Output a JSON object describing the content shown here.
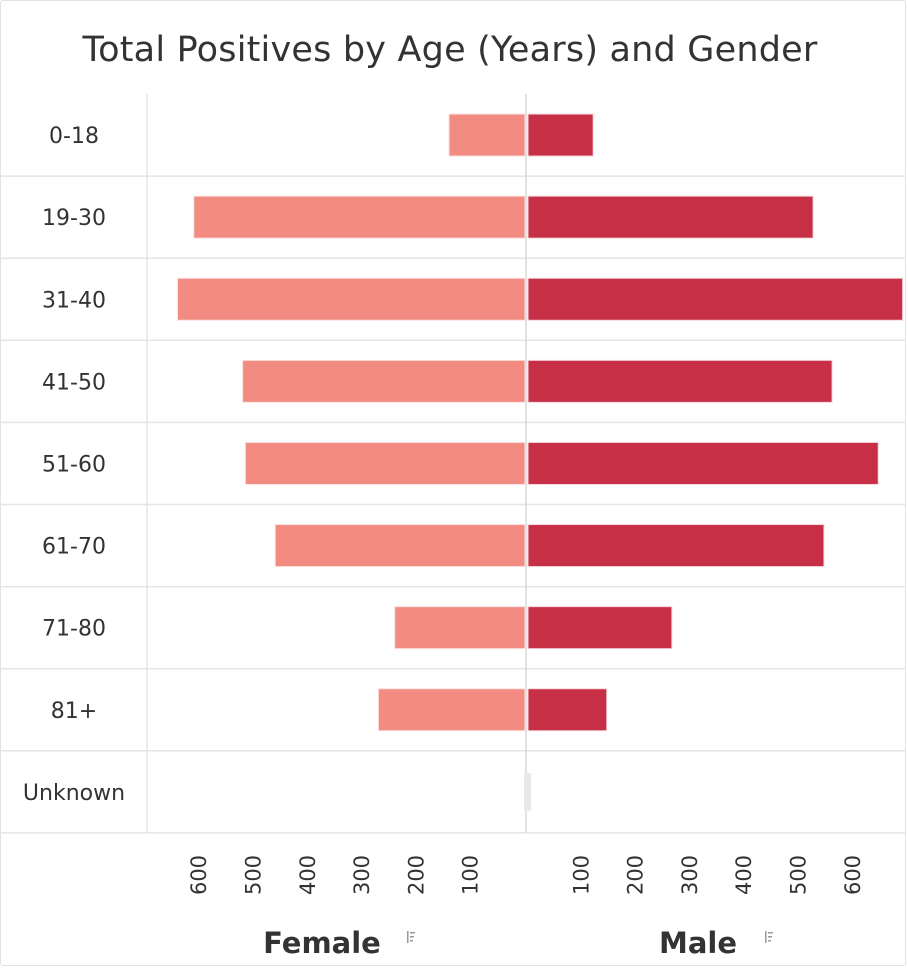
{
  "chart_data": {
    "type": "bar",
    "orientation": "horizontal-diverging",
    "title": "Total Positives by Age (Years) and Gender",
    "categories": [
      "0-18",
      "19-30",
      "31-40",
      "41-50",
      "51-60",
      "61-70",
      "71-80",
      "81+",
      "Unknown"
    ],
    "series": [
      {
        "name": "Female",
        "values": [
          140,
          610,
          640,
          520,
          515,
          460,
          240,
          270,
          0
        ],
        "color": "#f28b82"
      },
      {
        "name": "Male",
        "values": [
          120,
          525,
          690,
          560,
          645,
          545,
          265,
          145,
          0
        ],
        "color": "#c62f45"
      }
    ],
    "female_ticks": [
      600,
      500,
      400,
      300,
      200,
      100
    ],
    "male_ticks": [
      100,
      200,
      300,
      400,
      500,
      600
    ],
    "axis_range": [
      0,
      700
    ],
    "grid": true,
    "colors": {
      "female": "#f28b82",
      "male": "#c62f45",
      "grid": "#e5e5e5",
      "text": "#333333"
    }
  }
}
